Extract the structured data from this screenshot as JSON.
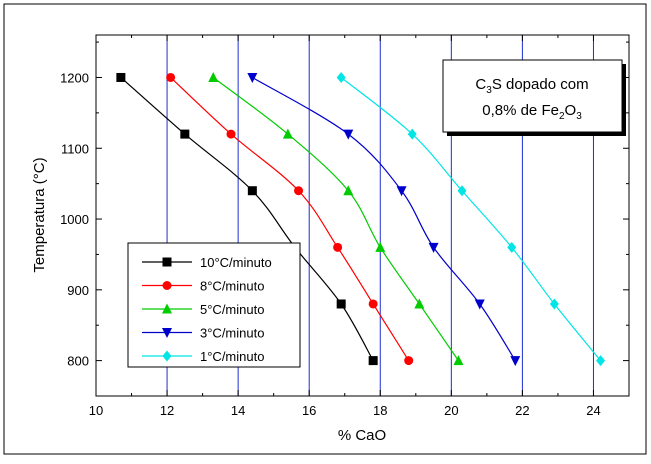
{
  "chart_data": {
    "type": "line",
    "xlabel": "% CaO",
    "ylabel": "Temperatura (°C)",
    "xlim": [
      10,
      25
    ],
    "ylim": [
      750,
      1260
    ],
    "xticks": [
      10,
      12,
      14,
      16,
      18,
      20,
      22,
      24
    ],
    "yticks": [
      800,
      900,
      1000,
      1100,
      1200
    ],
    "grid": "vertical lines at even x ticks",
    "annotation": {
      "line1": {
        "base": "C",
        "sub1": "3",
        "rest": "S dopado com"
      },
      "line2": {
        "base": "0,8% de Fe",
        "sub1": "2",
        "mid": "O",
        "sub2": "3"
      }
    },
    "legend_position": "bottom-left",
    "series": [
      {
        "name": "10°C/minuto",
        "color": "#000000",
        "marker": "square",
        "x": [
          10.7,
          12.5,
          14.4,
          15.6,
          16.9,
          17.8
        ],
        "y": [
          1200,
          1120,
          1040,
          960,
          880,
          800
        ]
      },
      {
        "name": "8°C/minuto",
        "color": "#ff0000",
        "marker": "circle",
        "x": [
          12.1,
          13.8,
          15.7,
          16.8,
          17.8,
          18.8
        ],
        "y": [
          1200,
          1120,
          1040,
          960,
          880,
          800
        ]
      },
      {
        "name": "5°C/minuto",
        "color": "#00cc00",
        "marker": "triangle-up",
        "x": [
          13.3,
          15.4,
          17.1,
          18.0,
          19.1,
          20.2
        ],
        "y": [
          1200,
          1120,
          1040,
          960,
          880,
          800
        ]
      },
      {
        "name": "3°C/minuto",
        "color": "#0000cc",
        "marker": "triangle-down",
        "x": [
          14.4,
          17.1,
          18.6,
          19.5,
          20.8,
          21.8
        ],
        "y": [
          1200,
          1120,
          1040,
          960,
          880,
          800
        ]
      },
      {
        "name": "1°C/minuto",
        "color": "#00e5e5",
        "marker": "diamond",
        "x": [
          16.9,
          18.9,
          20.3,
          21.7,
          22.9,
          24.2
        ],
        "y": [
          1200,
          1120,
          1040,
          960,
          880,
          800
        ]
      }
    ]
  }
}
